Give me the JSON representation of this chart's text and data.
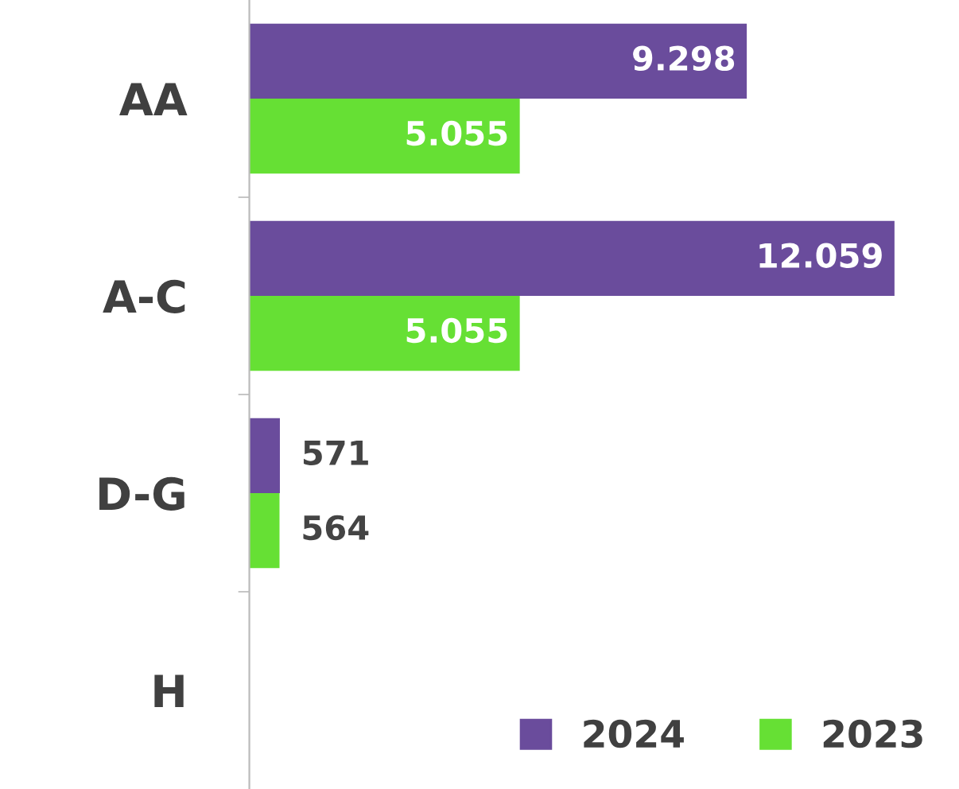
{
  "chart_data": {
    "type": "bar",
    "orientation": "horizontal",
    "categories": [
      "AA",
      "A-C",
      "D-G",
      "H"
    ],
    "series": [
      {
        "name": "2024",
        "color": "#6a4c9c",
        "values": [
          9298,
          12059,
          571,
          null
        ],
        "value_labels": [
          "9.298",
          "12.059",
          "571",
          null
        ]
      },
      {
        "name": "2023",
        "color": "#66e034",
        "values": [
          5055,
          5055,
          564,
          null
        ],
        "value_labels": [
          "5.055",
          "5.055",
          "564",
          null
        ]
      }
    ],
    "tick_labels": "y",
    "grid": false,
    "legend": "bottom right"
  }
}
